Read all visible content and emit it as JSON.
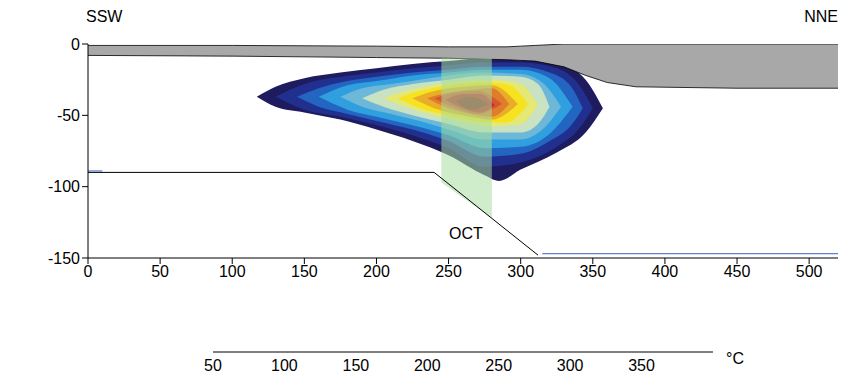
{
  "chart_data": {
    "type": "cross_section",
    "labels": {
      "left": "SSW",
      "right": "NNE"
    },
    "xlim": [
      0,
      520
    ],
    "xticks": [
      0,
      50,
      100,
      150,
      200,
      250,
      300,
      350,
      400,
      450,
      500
    ],
    "ylim": [
      -150,
      0
    ],
    "yticks": [
      -150,
      -100,
      -50,
      0
    ],
    "contours": [
      {
        "level": 50,
        "x": [
          117,
          130,
          150,
          175,
          200,
          225,
          250,
          275,
          285,
          300,
          325,
          345,
          357
        ],
        "upper": [
          -37,
          -30,
          -24,
          -20,
          -17,
          -14,
          -12,
          -10,
          -10,
          -10,
          -13,
          -25,
          -45
        ],
        "lower": [
          -37,
          -44,
          -48,
          -53,
          -60,
          -68,
          -78,
          -92,
          -96,
          -88,
          -76,
          -62,
          -45
        ]
      },
      {
        "level": 75,
        "x": [
          130,
          150,
          175,
          200,
          225,
          250,
          275,
          300,
          325,
          340,
          350
        ],
        "upper": [
          -37,
          -28,
          -23,
          -20,
          -17,
          -15,
          -13,
          -13,
          -17,
          -28,
          -45
        ],
        "lower": [
          -37,
          -46,
          -51,
          -57,
          -64,
          -73,
          -86,
          -83,
          -72,
          -60,
          -45
        ]
      },
      {
        "level": 100,
        "x": [
          145,
          160,
          180,
          200,
          225,
          250,
          275,
          300,
          320,
          335,
          343
        ],
        "upper": [
          -37,
          -31,
          -26,
          -23,
          -20,
          -18,
          -16,
          -16,
          -20,
          -30,
          -45
        ],
        "lower": [
          -37,
          -44,
          -49,
          -54,
          -60,
          -68,
          -79,
          -77,
          -68,
          -57,
          -45
        ]
      },
      {
        "level": 125,
        "x": [
          160,
          180,
          200,
          225,
          250,
          275,
          300,
          320,
          336
        ],
        "upper": [
          -37,
          -29,
          -26,
          -22,
          -20,
          -18,
          -18,
          -24,
          -44
        ],
        "lower": [
          -37,
          -46,
          -51,
          -57,
          -64,
          -73,
          -72,
          -63,
          -44
        ]
      },
      {
        "level": 150,
        "x": [
          175,
          190,
          210,
          230,
          250,
          275,
          300,
          315,
          328
        ],
        "upper": [
          -37,
          -31,
          -28,
          -25,
          -22,
          -20,
          -21,
          -27,
          -44
        ],
        "lower": [
          -37,
          -44,
          -49,
          -54,
          -60,
          -67,
          -67,
          -60,
          -44
        ]
      },
      {
        "level": 175,
        "x": [
          190,
          205,
          225,
          250,
          275,
          300,
          312,
          320
        ],
        "upper": [
          -38,
          -32,
          -28,
          -25,
          -22,
          -23,
          -28,
          -44
        ],
        "lower": [
          -38,
          -44,
          -50,
          -56,
          -62,
          -62,
          -56,
          -44
        ]
      },
      {
        "level": 200,
        "x": [
          205,
          220,
          240,
          260,
          280,
          300,
          312
        ],
        "upper": [
          -38,
          -33,
          -29,
          -26,
          -25,
          -28,
          -43
        ],
        "lower": [
          -38,
          -44,
          -50,
          -55,
          -58,
          -56,
          -43
        ]
      },
      {
        "level": 225,
        "x": [
          215,
          230,
          250,
          270,
          290,
          305
        ],
        "upper": [
          -38,
          -33,
          -29,
          -27,
          -28,
          -42
        ],
        "lower": [
          -38,
          -45,
          -50,
          -54,
          -55,
          -42
        ]
      },
      {
        "level": 250,
        "x": [
          225,
          240,
          260,
          280,
          298
        ],
        "upper": [
          -38,
          -33,
          -30,
          -29,
          -42
        ],
        "lower": [
          -38,
          -45,
          -50,
          -53,
          -42
        ]
      },
      {
        "level": 275,
        "x": [
          235,
          250,
          265,
          280,
          292
        ],
        "upper": [
          -38,
          -34,
          -32,
          -31,
          -42
        ],
        "lower": [
          -38,
          -45,
          -49,
          -51,
          -42
        ]
      },
      {
        "level": 300,
        "x": [
          240,
          255,
          270,
          287
        ],
        "upper": [
          -38,
          -34,
          -33,
          -42
        ],
        "lower": [
          -38,
          -45,
          -49,
          -42
        ]
      },
      {
        "level": 325,
        "x": [
          248,
          260,
          272,
          282
        ],
        "upper": [
          -39,
          -35,
          -35,
          -43
        ],
        "lower": [
          -39,
          -45,
          -48,
          -43
        ]
      },
      {
        "level": 350,
        "x": [
          255,
          265,
          278
        ],
        "upper": [
          -40,
          -37,
          -42
        ],
        "lower": [
          -40,
          -46,
          -42
        ]
      }
    ],
    "shaded_layer": {
      "color": "#a8a8a8",
      "x": [
        0,
        100,
        200,
        250,
        290,
        300,
        310,
        330,
        345,
        360,
        380,
        450,
        520
      ],
      "upper": [
        -1,
        -1,
        -1.5,
        -2,
        -2,
        -1.5,
        -1,
        0,
        0,
        0,
        0,
        0,
        0
      ],
      "lower": [
        -8,
        -8.5,
        -9.5,
        -10,
        -11,
        -11.5,
        -12,
        -16,
        -22,
        -27,
        -30,
        -31,
        -31
      ]
    },
    "zone": {
      "label": "OCT",
      "color": "#a8dca0",
      "x": [
        245,
        280
      ],
      "upper": [
        -10,
        -10
      ],
      "lower": [
        -97,
        -122
      ],
      "label_at": [
        262,
        -133
      ]
    },
    "lines": [
      {
        "color": "#000000",
        "x": [
          0,
          240,
          312
        ],
        "y": [
          -90,
          -90,
          -148
        ]
      },
      {
        "color": "#3a5fc0",
        "x": [
          0,
          10
        ],
        "y": [
          -89,
          -89
        ]
      },
      {
        "color": "#3a5fc0",
        "x": [
          315,
          520
        ],
        "y": [
          -147,
          -147
        ]
      }
    ],
    "colorbar": {
      "range": [
        50,
        400
      ],
      "ticks": [
        50,
        100,
        150,
        200,
        250,
        300,
        350
      ],
      "unit": "°C",
      "levels": [
        50,
        75,
        100,
        125,
        150,
        175,
        200,
        225,
        250,
        275,
        300,
        325,
        350,
        375
      ],
      "colors": [
        "#1e1b5e",
        "#21308f",
        "#2266c1",
        "#2f9fe0",
        "#6db7d8",
        "#c8e2c2",
        "#e6e874",
        "#f6e21f",
        "#e8ae2a",
        "#e17d2a",
        "#d45730",
        "#c42b2a",
        "#8e2b2b",
        "#5a3633"
      ]
    }
  }
}
